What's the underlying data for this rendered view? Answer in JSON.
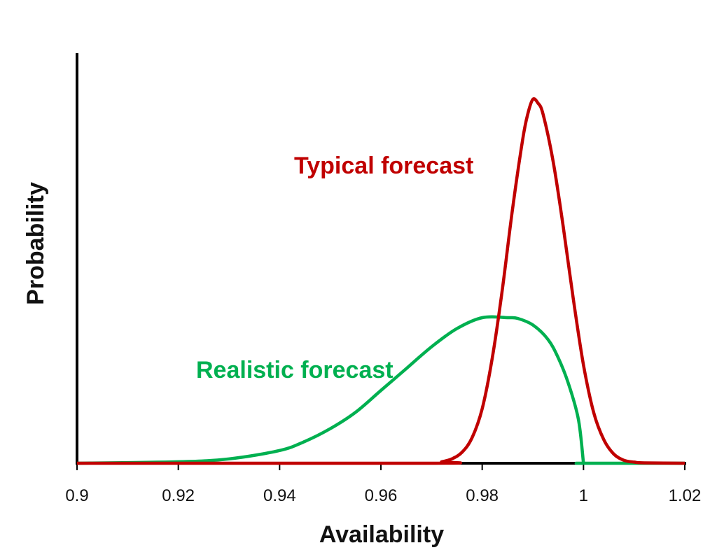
{
  "chart_data": {
    "type": "line",
    "title": "",
    "xlabel": "Availability",
    "ylabel": "Probability",
    "xlim": [
      0.9,
      1.02
    ],
    "ylim": [
      0,
      1
    ],
    "x_ticks": [
      0.9,
      0.92,
      0.94,
      0.96,
      0.98,
      1.0,
      1.02
    ],
    "x_tick_labels": [
      "0.9",
      "0.92",
      "0.94",
      "0.96",
      "0.98",
      "1",
      "1.02"
    ],
    "y_ticks_shown": false,
    "grid": false,
    "legend": "none",
    "series": [
      {
        "name": "Typical forecast",
        "color": "#C00000",
        "x": [
          0.9,
          0.97,
          0.972,
          0.974,
          0.976,
          0.978,
          0.98,
          0.982,
          0.984,
          0.986,
          0.988,
          0.989,
          0.99,
          0.991,
          0.992,
          0.994,
          0.996,
          0.998,
          1.0,
          1.002,
          1.004,
          1.006,
          1.008,
          1.01,
          1.012,
          1.02
        ],
        "y": [
          0.0,
          0.0,
          0.004,
          0.012,
          0.03,
          0.07,
          0.15,
          0.29,
          0.48,
          0.7,
          0.89,
          0.96,
          1.0,
          0.99,
          0.96,
          0.83,
          0.65,
          0.45,
          0.27,
          0.14,
          0.065,
          0.025,
          0.008,
          0.003,
          0.001,
          0.0
        ]
      },
      {
        "name": "Realistic forecast",
        "color": "#00B050",
        "x": [
          0.9,
          0.92,
          0.93,
          0.94,
          0.945,
          0.95,
          0.955,
          0.96,
          0.965,
          0.97,
          0.975,
          0.98,
          0.985,
          0.987,
          0.99,
          0.993,
          0.995,
          0.997,
          0.999,
          1.0,
          1.0,
          1.02
        ],
        "y": [
          0.0,
          0.004,
          0.012,
          0.035,
          0.06,
          0.095,
          0.14,
          0.2,
          0.26,
          0.32,
          0.37,
          0.4,
          0.4,
          0.398,
          0.38,
          0.34,
          0.29,
          0.22,
          0.12,
          0.0,
          0.0,
          0.0
        ]
      }
    ]
  }
}
